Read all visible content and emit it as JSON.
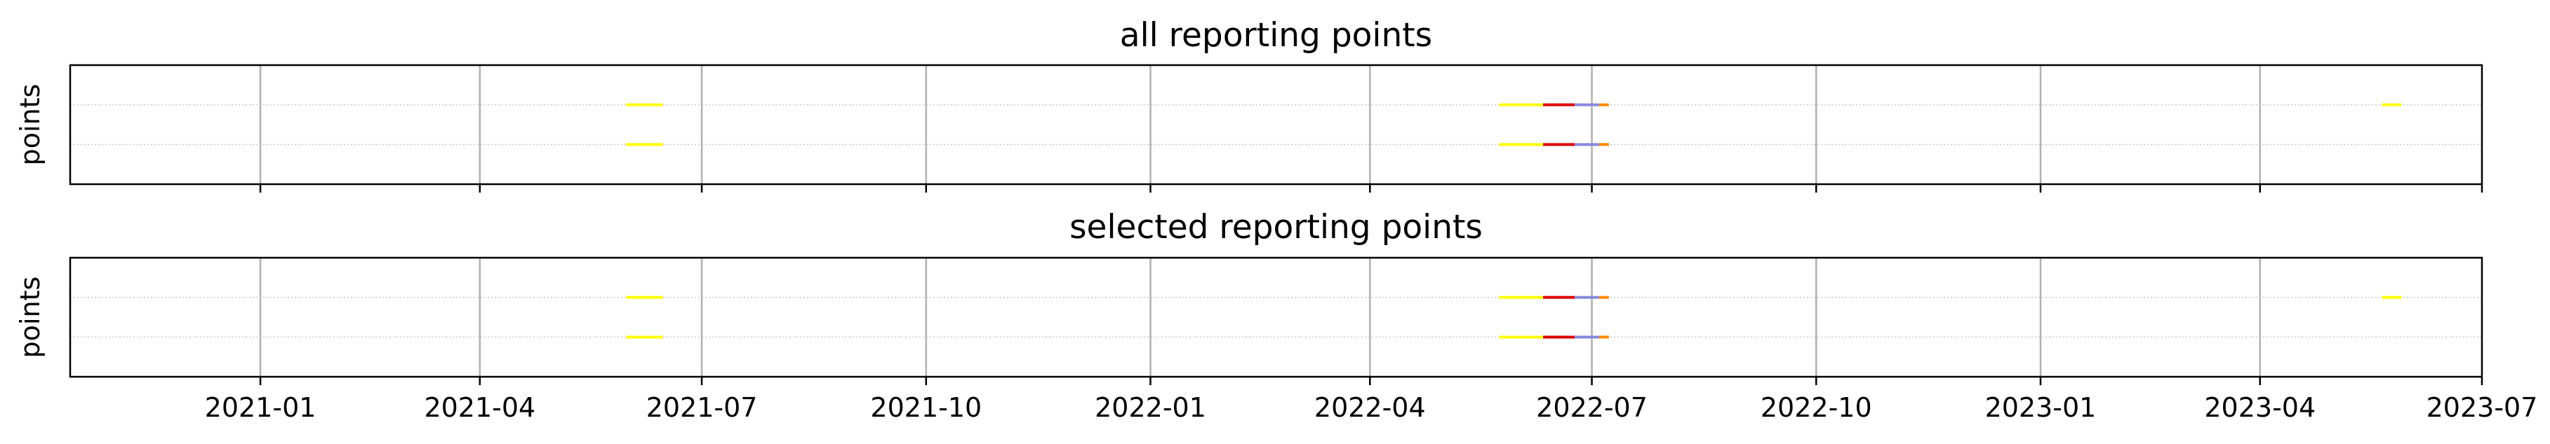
{
  "chart_data": [
    {
      "type": "timeline",
      "title": "all reporting points",
      "ylabel": "points",
      "xlim": [
        "2020-10-15",
        "2023-07-01"
      ],
      "xticks": [
        "2021-01",
        "2021-04",
        "2021-07",
        "2021-10",
        "2022-01",
        "2022-04",
        "2022-07",
        "2022-10",
        "2023-01",
        "2023-04",
        "2023-07"
      ],
      "show_xtick_labels": false,
      "grid": true,
      "rows": [
        {
          "segments": [
            {
              "start": "2022-05-24",
              "end": "2022-06-11",
              "color": "#ffff00"
            },
            {
              "start": "2022-06-11",
              "end": "2022-06-24",
              "color": "#dd0000"
            },
            {
              "start": "2022-06-24",
              "end": "2022-07-04",
              "color": "#8888dd"
            },
            {
              "start": "2022-07-04",
              "end": "2022-07-08",
              "color": "#ff8800"
            },
            {
              "start": "2021-05-31",
              "end": "2021-06-15",
              "color": "#ffff00"
            },
            {
              "start": "2023-05-21",
              "end": "2023-05-29",
              "color": "#ffff00"
            }
          ]
        },
        {
          "segments": [
            {
              "start": "2021-05-31",
              "end": "2021-06-15",
              "color": "#ffff00"
            },
            {
              "start": "2022-05-24",
              "end": "2022-06-11",
              "color": "#ffff00"
            },
            {
              "start": "2022-06-11",
              "end": "2022-06-24",
              "color": "#dd0000"
            },
            {
              "start": "2022-06-24",
              "end": "2022-07-04",
              "color": "#8888dd"
            },
            {
              "start": "2022-07-04",
              "end": "2022-07-08",
              "color": "#ff8800"
            }
          ]
        }
      ]
    },
    {
      "type": "timeline",
      "title": "selected reporting points",
      "ylabel": "points",
      "xlim": [
        "2020-10-15",
        "2023-07-01"
      ],
      "xticks": [
        "2021-01",
        "2021-04",
        "2021-07",
        "2021-10",
        "2022-01",
        "2022-04",
        "2022-07",
        "2022-10",
        "2023-01",
        "2023-04",
        "2023-07"
      ],
      "show_xtick_labels": true,
      "grid": true,
      "rows": [
        {
          "segments": [
            {
              "start": "2022-05-24",
              "end": "2022-06-11",
              "color": "#ffff00"
            },
            {
              "start": "2022-06-11",
              "end": "2022-06-24",
              "color": "#dd0000"
            },
            {
              "start": "2022-06-24",
              "end": "2022-07-04",
              "color": "#8888dd"
            },
            {
              "start": "2022-07-04",
              "end": "2022-07-08",
              "color": "#ff8800"
            },
            {
              "start": "2021-05-31",
              "end": "2021-06-15",
              "color": "#ffff00"
            },
            {
              "start": "2023-05-21",
              "end": "2023-05-29",
              "color": "#ffff00"
            }
          ]
        },
        {
          "segments": [
            {
              "start": "2021-05-31",
              "end": "2021-06-15",
              "color": "#ffff00"
            },
            {
              "start": "2022-05-24",
              "end": "2022-06-11",
              "color": "#ffff00"
            },
            {
              "start": "2022-06-11",
              "end": "2022-06-24",
              "color": "#dd0000"
            },
            {
              "start": "2022-06-24",
              "end": "2022-07-04",
              "color": "#8888dd"
            },
            {
              "start": "2022-07-04",
              "end": "2022-07-08",
              "color": "#ff8800"
            }
          ]
        }
      ]
    }
  ]
}
